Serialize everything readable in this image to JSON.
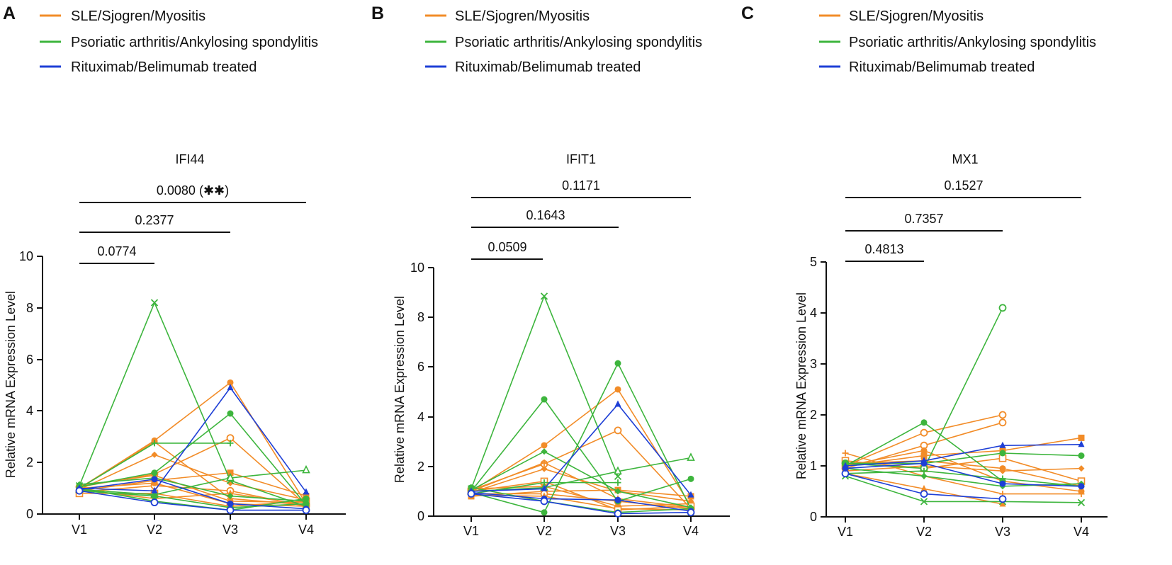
{
  "figure": {
    "legend_entries": [
      {
        "label": "SLE/Sjogren/Myositis",
        "color": "#F28C28"
      },
      {
        "label": "Psoriatic arthritis/Ankylosing spondylitis",
        "color": "#3DB53D"
      },
      {
        "label": "Rituximab/Belimumab treated",
        "color": "#1E3FD6"
      }
    ],
    "colors": {
      "sle": "#F28C28",
      "psa": "#3DB53D",
      "rtx": "#1E3FD6"
    }
  },
  "chart_data": [
    {
      "panel_label": "A",
      "type": "line",
      "title": "IFI44",
      "xlabel": "",
      "ylabel": "Relative mRNA Expression Level",
      "categories": [
        "V1",
        "V2",
        "V3",
        "V4"
      ],
      "ylim": [
        0,
        10
      ],
      "yticks": [
        "0",
        "2",
        "4",
        "6",
        "8",
        "10"
      ],
      "comparisons": [
        {
          "from": "V1",
          "to": "V2",
          "label": "0.0774"
        },
        {
          "from": "V1",
          "to": "V3",
          "label": "0.2377"
        },
        {
          "from": "V1",
          "to": "V4",
          "label": "0.0080 (✱✱)"
        }
      ],
      "series": [
        {
          "group": "sle",
          "marker": "circle",
          "values": [
            1.0,
            2.85,
            5.1,
            0.4
          ]
        },
        {
          "group": "sle",
          "marker": "diamond",
          "values": [
            0.95,
            2.3,
            1.2,
            0.55
          ]
        },
        {
          "group": "sle",
          "marker": "circle-open",
          "values": [
            1.05,
            1.55,
            2.95,
            0.35
          ]
        },
        {
          "group": "sle",
          "marker": "square",
          "values": [
            0.9,
            1.3,
            1.6,
            0.7
          ]
        },
        {
          "group": "sle",
          "marker": "plus",
          "values": [
            1.0,
            2.8,
            0.6,
            0.35
          ]
        },
        {
          "group": "sle",
          "marker": "circle-open",
          "values": [
            0.85,
            1.1,
            0.9,
            0.3
          ]
        },
        {
          "group": "sle",
          "marker": "circle",
          "values": [
            1.1,
            1.5,
            0.5,
            0.45
          ]
        },
        {
          "group": "sle",
          "marker": "triangle",
          "values": [
            0.95,
            0.6,
            0.8,
            0.35
          ]
        },
        {
          "group": "sle",
          "marker": "circle",
          "values": [
            1.0,
            1.2,
            0.4,
            0.3
          ]
        },
        {
          "group": "sle",
          "marker": "square-open",
          "values": [
            0.8,
            0.8,
            0.3,
            0.5
          ]
        },
        {
          "group": "psa",
          "marker": "cross",
          "values": [
            1.1,
            8.2,
            1.3,
            0.3
          ]
        },
        {
          "group": "psa",
          "marker": "circle",
          "values": [
            1.05,
            1.6,
            3.9,
            0.35
          ]
        },
        {
          "group": "psa",
          "marker": "plus",
          "values": [
            1.0,
            2.75,
            2.75,
            null
          ]
        },
        {
          "group": "psa",
          "marker": "triangle-open",
          "values": [
            0.95,
            0.75,
            1.4,
            1.7
          ]
        },
        {
          "group": "psa",
          "marker": "circle",
          "values": [
            1.0,
            0.5,
            0.15,
            0.6
          ]
        },
        {
          "group": "psa",
          "marker": "circle",
          "values": [
            0.9,
            0.7,
            0.25,
            0.4
          ]
        },
        {
          "group": "psa",
          "marker": "diamond",
          "values": [
            1.15,
            1.4,
            0.7,
            0.5
          ]
        },
        {
          "group": "rtx",
          "marker": "triangle",
          "values": [
            1.0,
            0.9,
            4.9,
            0.85
          ]
        },
        {
          "group": "rtx",
          "marker": "circle",
          "values": [
            0.95,
            1.35,
            0.4,
            0.2
          ]
        },
        {
          "group": "rtx",
          "marker": "circle-open",
          "values": [
            0.9,
            0.45,
            0.15,
            0.15
          ]
        }
      ]
    },
    {
      "panel_label": "B",
      "type": "line",
      "title": "IFIT1",
      "xlabel": "",
      "ylabel": "Relative mRNA Expression Level",
      "categories": [
        "V1",
        "V2",
        "V3",
        "V4"
      ],
      "ylim": [
        0,
        10
      ],
      "yticks": [
        "0",
        "2",
        "4",
        "6",
        "8",
        "10"
      ],
      "comparisons": [
        {
          "from": "V1",
          "to": "V2",
          "label": "0.0509"
        },
        {
          "from": "V1",
          "to": "V3",
          "label": "0.1643"
        },
        {
          "from": "V1",
          "to": "V4",
          "label": "0.1171"
        }
      ],
      "series": [
        {
          "group": "sle",
          "marker": "circle",
          "values": [
            1.0,
            2.85,
            5.1,
            0.4
          ]
        },
        {
          "group": "sle",
          "marker": "circle-open",
          "values": [
            1.05,
            2.1,
            3.45,
            0.3
          ]
        },
        {
          "group": "sle",
          "marker": "diamond",
          "values": [
            0.95,
            1.9,
            1.0,
            0.6
          ]
        },
        {
          "group": "sle",
          "marker": "square",
          "values": [
            0.8,
            1.0,
            1.05,
            0.8
          ]
        },
        {
          "group": "sle",
          "marker": "plus",
          "values": [
            1.0,
            2.15,
            0.7,
            0.35
          ]
        },
        {
          "group": "sle",
          "marker": "circle-open",
          "values": [
            0.9,
            0.9,
            0.6,
            0.3
          ]
        },
        {
          "group": "sle",
          "marker": "circle",
          "values": [
            1.1,
            1.2,
            0.4,
            0.5
          ]
        },
        {
          "group": "sle",
          "marker": "triangle",
          "values": [
            0.85,
            0.8,
            0.3,
            0.25
          ]
        },
        {
          "group": "sle",
          "marker": "square-open",
          "values": [
            1.0,
            1.4,
            0.25,
            0.4
          ]
        },
        {
          "group": "psa",
          "marker": "cross",
          "values": [
            1.1,
            8.85,
            1.6,
            null
          ]
        },
        {
          "group": "psa",
          "marker": "circle",
          "values": [
            1.0,
            4.7,
            0.6,
            1.5
          ]
        },
        {
          "group": "psa",
          "marker": "circle",
          "values": [
            0.95,
            0.15,
            6.15,
            0.3
          ]
        },
        {
          "group": "psa",
          "marker": "diamond",
          "values": [
            1.05,
            2.6,
            1.0,
            0.35
          ]
        },
        {
          "group": "psa",
          "marker": "plus",
          "values": [
            0.9,
            1.35,
            1.35,
            null
          ]
        },
        {
          "group": "psa",
          "marker": "triangle-open",
          "values": [
            1.0,
            1.15,
            1.8,
            2.35
          ]
        },
        {
          "group": "psa",
          "marker": "circle",
          "values": [
            1.15,
            0.6,
            0.15,
            0.3
          ]
        },
        {
          "group": "rtx",
          "marker": "triangle",
          "values": [
            1.0,
            1.1,
            4.5,
            0.85
          ]
        },
        {
          "group": "rtx",
          "marker": "circle",
          "values": [
            0.95,
            0.7,
            0.65,
            0.2
          ]
        },
        {
          "group": "rtx",
          "marker": "circle-open",
          "values": [
            0.9,
            0.6,
            0.1,
            0.15
          ]
        }
      ]
    },
    {
      "panel_label": "C",
      "type": "line",
      "title": "MX1",
      "xlabel": "",
      "ylabel": "Relative mRNA Expression Level",
      "categories": [
        "V1",
        "V2",
        "V3",
        "V4"
      ],
      "ylim": [
        0,
        5
      ],
      "yticks": [
        "0",
        "1",
        "2",
        "3",
        "4",
        "5"
      ],
      "comparisons": [
        {
          "from": "V1",
          "to": "V2",
          "label": "0.4813"
        },
        {
          "from": "V1",
          "to": "V3",
          "label": "0.7357"
        },
        {
          "from": "V1",
          "to": "V4",
          "label": "0.1527"
        }
      ],
      "series": [
        {
          "group": "sle",
          "marker": "circle-open",
          "values": [
            1.0,
            1.65,
            2.0,
            null
          ]
        },
        {
          "group": "sle",
          "marker": "circle-open",
          "values": [
            0.95,
            1.4,
            1.85,
            null
          ]
        },
        {
          "group": "sle",
          "marker": "square",
          "values": [
            1.0,
            1.2,
            1.3,
            1.55
          ]
        },
        {
          "group": "sle",
          "marker": "diamond",
          "values": [
            0.9,
            1.0,
            0.9,
            0.95
          ]
        },
        {
          "group": "sle",
          "marker": "plus",
          "values": [
            1.25,
            0.8,
            0.45,
            0.45
          ]
        },
        {
          "group": "sle",
          "marker": "circle",
          "values": [
            1.05,
            1.1,
            0.95,
            0.6
          ]
        },
        {
          "group": "sle",
          "marker": "square-open",
          "values": [
            1.1,
            0.95,
            1.15,
            0.7
          ]
        },
        {
          "group": "sle",
          "marker": "triangle",
          "values": [
            0.85,
            0.55,
            0.25,
            null
          ]
        },
        {
          "group": "sle",
          "marker": "circle",
          "values": [
            1.0,
            1.3,
            0.7,
            0.5
          ]
        },
        {
          "group": "psa",
          "marker": "circle",
          "values": [
            1.0,
            1.85,
            0.7,
            null
          ]
        },
        {
          "group": "psa",
          "marker": "circle-open",
          "values": [
            1.05,
            0.95,
            4.1,
            null
          ]
        },
        {
          "group": "psa",
          "marker": "circle",
          "values": [
            1.05,
            1.05,
            1.25,
            1.2
          ]
        },
        {
          "group": "psa",
          "marker": "cross",
          "values": [
            0.8,
            0.3,
            0.3,
            0.28
          ]
        },
        {
          "group": "psa",
          "marker": "diamond",
          "values": [
            0.95,
            0.8,
            0.6,
            0.65
          ]
        },
        {
          "group": "psa",
          "marker": "plus",
          "values": [
            0.85,
            0.9,
            0.75,
            0.6
          ]
        },
        {
          "group": "rtx",
          "marker": "triangle",
          "values": [
            1.0,
            1.1,
            1.4,
            1.42
          ]
        },
        {
          "group": "rtx",
          "marker": "circle-open",
          "values": [
            0.85,
            0.45,
            0.35,
            null
          ]
        },
        {
          "group": "rtx",
          "marker": "circle",
          "values": [
            0.95,
            1.05,
            0.65,
            0.6
          ]
        }
      ]
    }
  ]
}
